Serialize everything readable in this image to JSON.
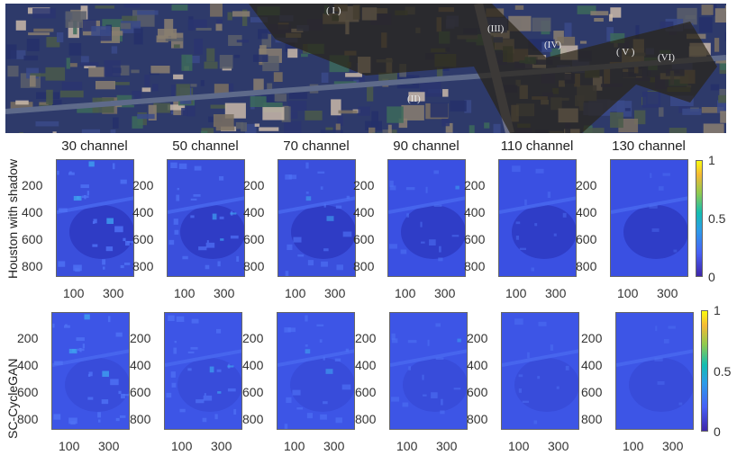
{
  "chart_data": {
    "type": "heatmap",
    "aerial_region_labels": [
      "( I )",
      "(II)",
      "(III)",
      "(IV)",
      "( V )",
      "(VI)"
    ],
    "channels": [
      "30 channel",
      "50 channel",
      "70 channel",
      "90 channel",
      "110 channel",
      "130 channel"
    ],
    "rows": [
      {
        "label": "Houston with shadow"
      },
      {
        "label": "SC-CycleGAN"
      }
    ],
    "y_ticks": [
      "200",
      "400",
      "600",
      "800"
    ],
    "x_ticks": [
      "100",
      "300"
    ],
    "colorbar": {
      "ticks": [
        "1",
        "0.5",
        "0"
      ],
      "range": [
        0,
        1
      ],
      "colormap": "parula"
    },
    "colors": {
      "panel_base": "#3a4fe0",
      "shadow": "#2a33b8"
    }
  }
}
